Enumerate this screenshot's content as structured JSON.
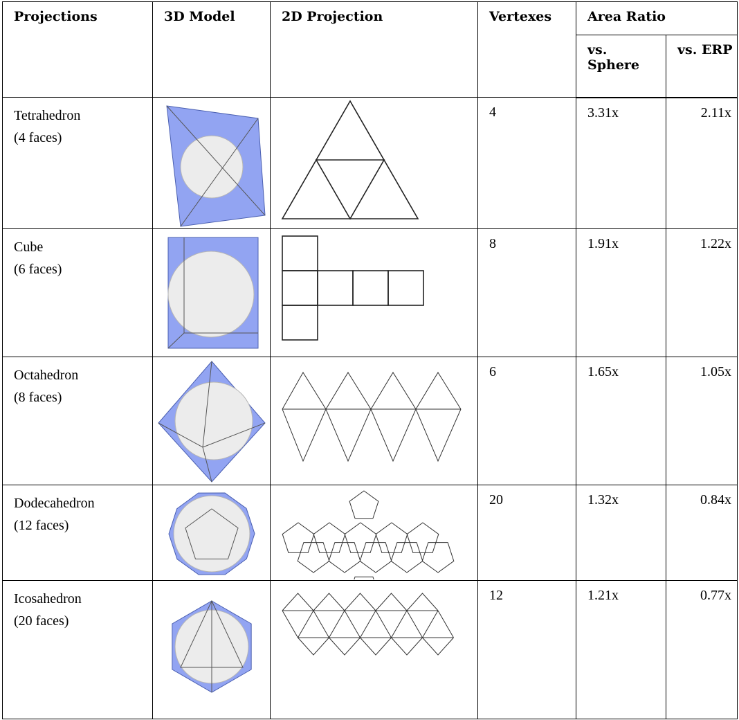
{
  "table": {
    "header": {
      "columns": [
        "Projections",
        "3D Model",
        "2D Projection",
        "Vertexes",
        "Area Ratio"
      ],
      "subcolumns": [
        "vs. Sphere",
        "vs. ERP"
      ]
    },
    "rows": [
      {
        "name": "Tetrahedron",
        "faces": "(4 faces)",
        "vertexes": "4",
        "vs_sphere": "3.31x",
        "vs_erp": "2.11x"
      },
      {
        "name": "Cube",
        "faces": "(6 faces)",
        "vertexes": "8",
        "vs_sphere": "1.91x",
        "vs_erp": "1.22x"
      },
      {
        "name": "Octahedron",
        "faces": "(8 faces)",
        "vertexes": "6",
        "vs_sphere": "1.65x",
        "vs_erp": "1.05x"
      },
      {
        "name": "Dodecahedron",
        "faces": "(12 faces)",
        "vertexes": "20",
        "vs_sphere": "1.32x",
        "vs_erp": "0.84x"
      },
      {
        "name": "Icosahedron",
        "faces": "(20 faces)",
        "vertexes": "12",
        "vs_sphere": "1.21x",
        "vs_erp": "0.77x"
      }
    ]
  }
}
